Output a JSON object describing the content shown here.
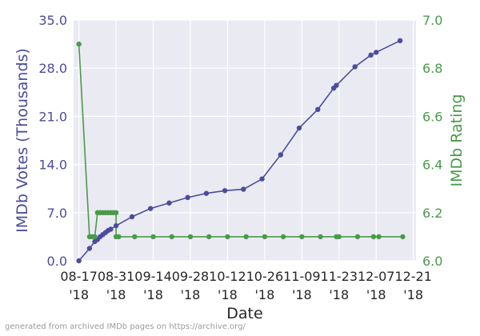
{
  "chart_data": {
    "type": "line",
    "xlabel": "Date",
    "x_tick_labels": [
      [
        "08-17",
        "'18"
      ],
      [
        "08-31",
        "'18"
      ],
      [
        "09-14",
        "'18"
      ],
      [
        "09-28",
        "'18"
      ],
      [
        "10-12",
        "'18"
      ],
      [
        "10-26",
        "'18"
      ],
      [
        "11-09",
        "'18"
      ],
      [
        "11-23",
        "'18"
      ],
      [
        "12-07",
        "'18"
      ],
      [
        "12-21",
        "'18"
      ]
    ],
    "x_ticks": [
      "2018-08-17",
      "2018-08-31",
      "2018-09-14",
      "2018-09-28",
      "2018-10-12",
      "2018-10-26",
      "2018-11-09",
      "2018-11-23",
      "2018-12-07",
      "2018-12-21"
    ],
    "xlim": [
      "2018-08-15",
      "2018-12-22"
    ],
    "grid": true,
    "left_axis": {
      "label": "IMDb Votes (Thousands)",
      "ylim": [
        0,
        35
      ],
      "ticks": [
        "0.0",
        "7.0",
        "14.0",
        "21.0",
        "28.0",
        "35.0"
      ],
      "color": "#4c4c9d"
    },
    "right_axis": {
      "label": "IMDb Rating",
      "ylim": [
        6.0,
        7.0
      ],
      "ticks": [
        "6.0",
        "6.2",
        "6.4",
        "6.6",
        "6.8",
        "7.0"
      ],
      "color": "#4a9a4a"
    },
    "series": [
      {
        "axis": "left",
        "color": "#4c4c9d",
        "points": [
          [
            "2018-08-17",
            0.0
          ],
          [
            "2018-08-21",
            1.8
          ],
          [
            "2018-08-23",
            2.8
          ],
          [
            "2018-08-24",
            3.1
          ],
          [
            "2018-08-25",
            3.5
          ],
          [
            "2018-08-26",
            3.8
          ],
          [
            "2018-08-27",
            4.1
          ],
          [
            "2018-08-28",
            4.4
          ],
          [
            "2018-08-29",
            4.6
          ],
          [
            "2018-08-31",
            5.1
          ],
          [
            "2018-09-06",
            6.4
          ],
          [
            "2018-09-13",
            7.6
          ],
          [
            "2018-09-20",
            8.4
          ],
          [
            "2018-09-27",
            9.2
          ],
          [
            "2018-10-04",
            9.8
          ],
          [
            "2018-10-11",
            10.2
          ],
          [
            "2018-10-18",
            10.4
          ],
          [
            "2018-10-25",
            11.9
          ],
          [
            "2018-11-01",
            15.4
          ],
          [
            "2018-11-08",
            19.3
          ],
          [
            "2018-11-15",
            22.0
          ],
          [
            "2018-11-21",
            25.1
          ],
          [
            "2018-11-22",
            25.5
          ],
          [
            "2018-11-29",
            28.2
          ],
          [
            "2018-12-05",
            29.9
          ],
          [
            "2018-12-07",
            30.3
          ],
          [
            "2018-12-16",
            32.0
          ]
        ]
      },
      {
        "axis": "right",
        "color": "#4a9a4a",
        "points": [
          [
            "2018-08-17",
            6.9
          ],
          [
            "2018-08-21",
            6.1
          ],
          [
            "2018-08-22",
            6.1
          ],
          [
            "2018-08-23",
            6.1
          ],
          [
            "2018-08-24",
            6.2
          ],
          [
            "2018-08-25",
            6.2
          ],
          [
            "2018-08-26",
            6.2
          ],
          [
            "2018-08-27",
            6.2
          ],
          [
            "2018-08-28",
            6.2
          ],
          [
            "2018-08-29",
            6.2
          ],
          [
            "2018-08-30",
            6.2
          ],
          [
            "2018-08-31",
            6.2
          ],
          [
            "2018-08-31",
            6.1
          ],
          [
            "2018-09-01",
            6.1
          ],
          [
            "2018-09-07",
            6.1
          ],
          [
            "2018-09-14",
            6.1
          ],
          [
            "2018-09-21",
            6.1
          ],
          [
            "2018-09-28",
            6.1
          ],
          [
            "2018-10-05",
            6.1
          ],
          [
            "2018-10-12",
            6.1
          ],
          [
            "2018-10-19",
            6.1
          ],
          [
            "2018-10-26",
            6.1
          ],
          [
            "2018-11-02",
            6.1
          ],
          [
            "2018-11-09",
            6.1
          ],
          [
            "2018-11-16",
            6.1
          ],
          [
            "2018-11-22",
            6.1
          ],
          [
            "2018-11-23",
            6.1
          ],
          [
            "2018-11-30",
            6.1
          ],
          [
            "2018-12-06",
            6.1
          ],
          [
            "2018-12-08",
            6.1
          ],
          [
            "2018-12-17",
            6.1
          ]
        ]
      }
    ]
  },
  "footnote": "generated from archived IMDb pages on https://archive.org/"
}
